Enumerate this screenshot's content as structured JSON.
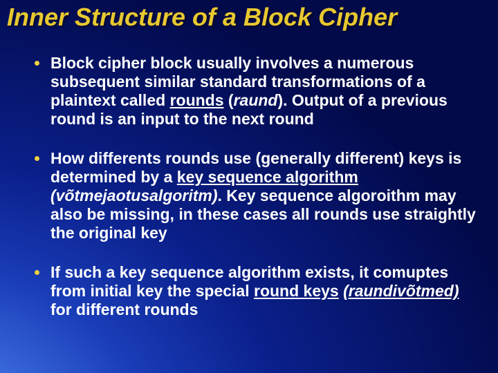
{
  "slide": {
    "title_text": "Inner Structure of a Block Cipher",
    "title_color": "#e8c830",
    "title_fontsize": 36,
    "body_color": "#ffffff",
    "body_fontsize": 23,
    "body_lineheight": 27,
    "bullet_color": "#f0d040",
    "bullet_gap": 30,
    "bullets": [
      {
        "runs": [
          {
            "t": "Block cipher block usually involves a numerous subsequent similar standard transformations of a plaintext called "
          },
          {
            "t": "rounds",
            "u": true
          },
          {
            "t": " ("
          },
          {
            "t": "raund",
            "i": true
          },
          {
            "t": "). Output of a previous round is an input to the next round"
          }
        ]
      },
      {
        "runs": [
          {
            "t": "How differents rounds use (generally different) keys is determined by a  "
          },
          {
            "t": "key sequence algorithm",
            "u": true
          },
          {
            "t": " "
          },
          {
            "t": "(võtmejaotusalgoritm)",
            "i": true
          },
          {
            "t": ". Key sequence algoroithm may also  be missing, in these cases  all rounds use straightly the original key"
          }
        ]
      },
      {
        "runs": [
          {
            "t": "If such a  key sequence algorithm exists, it comuptes from initial key the special "
          },
          {
            "t": "round keys",
            "u": true
          },
          {
            "t": " "
          },
          {
            "t": "(raundivõtmed)",
            "i": true,
            "u": true
          },
          {
            "t": " for different rounds"
          }
        ]
      }
    ]
  }
}
